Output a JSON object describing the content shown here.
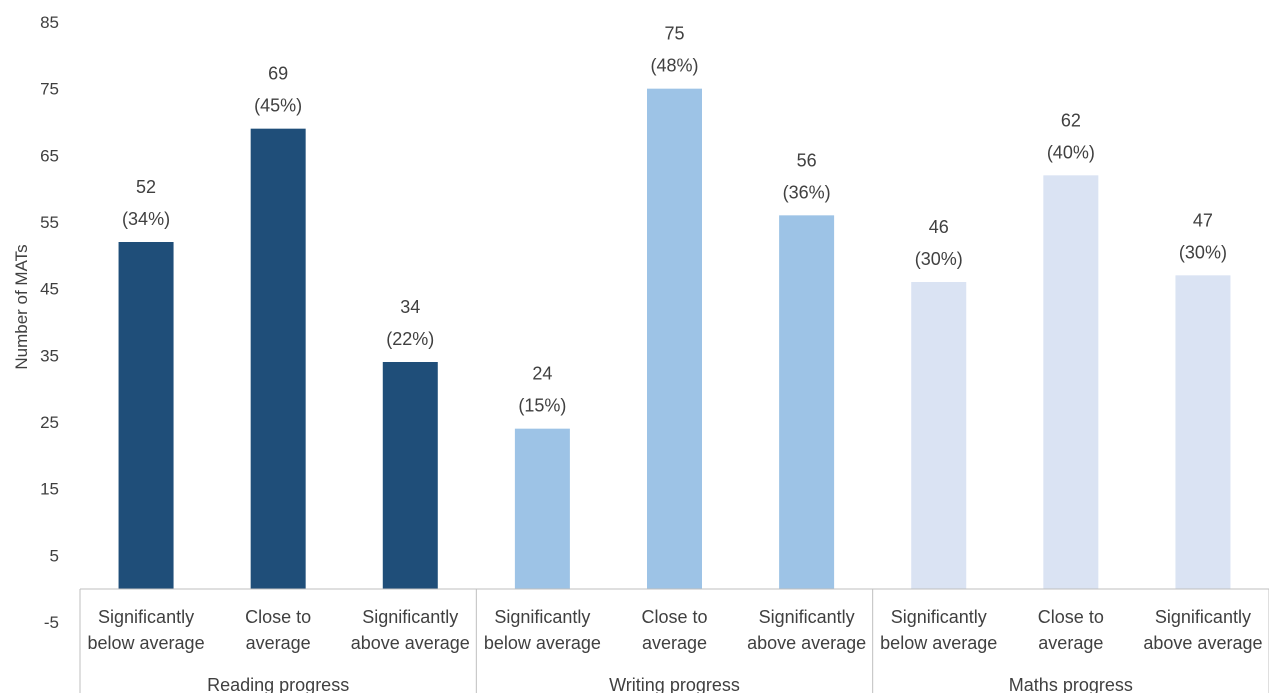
{
  "chart_data": {
    "type": "bar",
    "title": "",
    "ylabel": "Number of MATs",
    "ylim": [
      -5,
      85
    ],
    "yticks": [
      85,
      75,
      65,
      55,
      45,
      35,
      25,
      15,
      5,
      -5
    ],
    "grid": false,
    "legend": "none",
    "groups": [
      {
        "name": "Reading progress",
        "color": "#1f4e79",
        "bars": [
          {
            "category": [
              "Significantly",
              "below average"
            ],
            "value": 52,
            "label": "52",
            "percent": "(34%)"
          },
          {
            "category": [
              "Close to",
              "average"
            ],
            "value": 69,
            "label": "69",
            "percent": "(45%)"
          },
          {
            "category": [
              "Significantly",
              "above average"
            ],
            "value": 34,
            "label": "34",
            "percent": "(22%)"
          }
        ]
      },
      {
        "name": "Writing progress",
        "color": "#9dc3e6",
        "bars": [
          {
            "category": [
              "Significantly",
              "below average"
            ],
            "value": 24,
            "label": "24",
            "percent": "(15%)"
          },
          {
            "category": [
              "Close to",
              "average"
            ],
            "value": 75,
            "label": "75",
            "percent": "(48%)"
          },
          {
            "category": [
              "Significantly",
              "above average"
            ],
            "value": 56,
            "label": "56",
            "percent": "(36%)"
          }
        ]
      },
      {
        "name": "Maths progress",
        "color": "#dae3f3",
        "bars": [
          {
            "category": [
              "Significantly",
              "below average"
            ],
            "value": 46,
            "label": "46",
            "percent": "(30%)"
          },
          {
            "category": [
              "Close to",
              "average"
            ],
            "value": 62,
            "label": "62",
            "percent": "(40%)"
          },
          {
            "category": [
              "Significantly",
              "above average"
            ],
            "value": 47,
            "label": "47",
            "percent": "(30%)"
          }
        ]
      }
    ]
  }
}
